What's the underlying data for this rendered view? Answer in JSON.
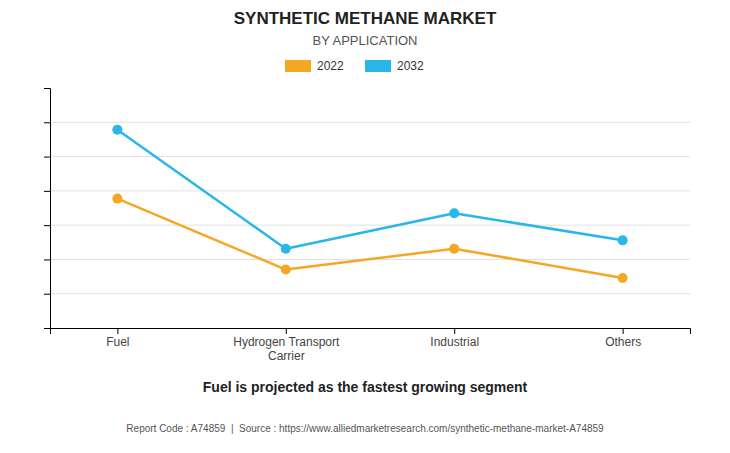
{
  "chart_data": {
    "type": "line",
    "title": "SYNTHETIC METHANE MARKET",
    "subtitle": "BY APPLICATION",
    "categories": [
      "Fuel",
      "Hydrogen Transport\nCarrier",
      "Industrial",
      "Others"
    ],
    "series": [
      {
        "name": "2022",
        "color": "#F5A623",
        "marker": "circle",
        "values": [
          0.62,
          0.28,
          0.38,
          0.24
        ]
      },
      {
        "name": "2032",
        "color": "#29B6E8",
        "marker": "circle",
        "values": [
          0.95,
          0.38,
          0.55,
          0.42
        ]
      }
    ],
    "ylim": [
      0.0,
      1.15
    ],
    "yticks": [
      0.16428571428571428,
      0.32857142857142857,
      0.4928571428571428,
      0.6571428571428571,
      0.8214285714285714,
      0.9857142857142857
    ],
    "grid": true,
    "tick_labels": "x",
    "legend": "top",
    "annotations": [
      "Fuel is projected as the fastest growing segment",
      "Report Code : A74859  |  Source : https://www.alliedmarketresearch.com/synthetic-methane-market-A74859"
    ]
  }
}
